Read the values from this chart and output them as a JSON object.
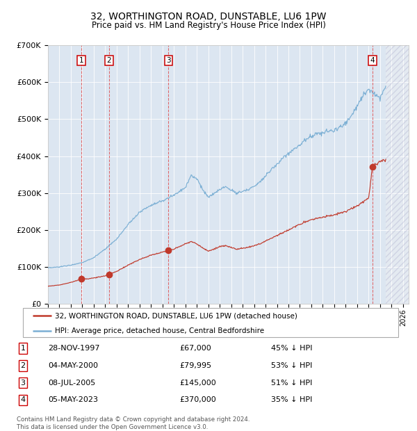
{
  "title1": "32, WORTHINGTON ROAD, DUNSTABLE, LU6 1PW",
  "title2": "Price paid vs. HM Land Registry's House Price Index (HPI)",
  "ylim": [
    0,
    700000
  ],
  "yticks": [
    0,
    100000,
    200000,
    300000,
    400000,
    500000,
    600000,
    700000
  ],
  "ytick_labels": [
    "£0",
    "£100K",
    "£200K",
    "£300K",
    "£400K",
    "£500K",
    "£600K",
    "£700K"
  ],
  "xlim_start": 1995.0,
  "xlim_end": 2026.5,
  "bg_color": "#dce6f1",
  "hpi_line_color": "#7bafd4",
  "price_line_color": "#c0392b",
  "marker_color": "#c0392b",
  "vline_color": "#e05050",
  "legend_label_red": "32, WORTHINGTON ROAD, DUNSTABLE, LU6 1PW (detached house)",
  "legend_label_blue": "HPI: Average price, detached house, Central Bedfordshire",
  "footer_text": "Contains HM Land Registry data © Crown copyright and database right 2024.\nThis data is licensed under the Open Government Licence v3.0.",
  "transactions": [
    {
      "num": 1,
      "date": "28-NOV-1997",
      "year": 1997.91,
      "price": 67000,
      "pct": "45% ↓ HPI"
    },
    {
      "num": 2,
      "date": "04-MAY-2000",
      "year": 2000.34,
      "price": 79995,
      "pct": "53% ↓ HPI"
    },
    {
      "num": 3,
      "date": "08-JUL-2005",
      "year": 2005.52,
      "price": 145000,
      "pct": "51% ↓ HPI"
    },
    {
      "num": 4,
      "date": "05-MAY-2023",
      "year": 2023.34,
      "price": 370000,
      "pct": "35% ↓ HPI"
    }
  ],
  "hatch_start": 2024.5,
  "hatch_end": 2026.5,
  "hpi_key_points": [
    [
      1995.0,
      97000
    ],
    [
      1996.0,
      100000
    ],
    [
      1997.0,
      105000
    ],
    [
      1998.0,
      112000
    ],
    [
      1999.0,
      125000
    ],
    [
      2000.0,
      148000
    ],
    [
      2001.0,
      175000
    ],
    [
      2002.0,
      215000
    ],
    [
      2003.0,
      248000
    ],
    [
      2004.0,
      268000
    ],
    [
      2005.0,
      278000
    ],
    [
      2006.0,
      295000
    ],
    [
      2007.0,
      315000
    ],
    [
      2007.5,
      348000
    ],
    [
      2008.0,
      340000
    ],
    [
      2008.5,
      310000
    ],
    [
      2009.0,
      288000
    ],
    [
      2009.5,
      298000
    ],
    [
      2010.0,
      310000
    ],
    [
      2010.5,
      318000
    ],
    [
      2011.0,
      308000
    ],
    [
      2011.5,
      300000
    ],
    [
      2012.0,
      305000
    ],
    [
      2012.5,
      310000
    ],
    [
      2013.0,
      318000
    ],
    [
      2013.5,
      330000
    ],
    [
      2014.0,
      348000
    ],
    [
      2015.0,
      378000
    ],
    [
      2016.0,
      408000
    ],
    [
      2017.0,
      430000
    ],
    [
      2017.5,
      445000
    ],
    [
      2018.0,
      455000
    ],
    [
      2018.5,
      460000
    ],
    [
      2019.0,
      462000
    ],
    [
      2019.5,
      468000
    ],
    [
      2020.0,
      470000
    ],
    [
      2020.5,
      478000
    ],
    [
      2021.0,
      490000
    ],
    [
      2021.5,
      510000
    ],
    [
      2022.0,
      535000
    ],
    [
      2022.5,
      565000
    ],
    [
      2023.0,
      580000
    ],
    [
      2023.5,
      570000
    ],
    [
      2024.0,
      558000
    ],
    [
      2024.5,
      590000
    ]
  ],
  "red_key_points": [
    [
      1995.0,
      48000
    ],
    [
      1996.0,
      51000
    ],
    [
      1997.0,
      58000
    ],
    [
      1997.91,
      67000
    ],
    [
      1998.5,
      68000
    ],
    [
      1999.0,
      70000
    ],
    [
      2000.0,
      76000
    ],
    [
      2000.34,
      79995
    ],
    [
      2001.0,
      88000
    ],
    [
      2002.0,
      105000
    ],
    [
      2003.0,
      120000
    ],
    [
      2004.0,
      132000
    ],
    [
      2005.0,
      140000
    ],
    [
      2005.52,
      145000
    ],
    [
      2006.0,
      148000
    ],
    [
      2007.0,
      162000
    ],
    [
      2007.5,
      170000
    ],
    [
      2008.0,
      162000
    ],
    [
      2008.5,
      152000
    ],
    [
      2009.0,
      143000
    ],
    [
      2009.5,
      148000
    ],
    [
      2010.0,
      155000
    ],
    [
      2010.5,
      158000
    ],
    [
      2011.0,
      152000
    ],
    [
      2011.5,
      148000
    ],
    [
      2012.0,
      150000
    ],
    [
      2012.5,
      153000
    ],
    [
      2013.0,
      157000
    ],
    [
      2013.5,
      162000
    ],
    [
      2014.0,
      170000
    ],
    [
      2015.0,
      185000
    ],
    [
      2016.0,
      200000
    ],
    [
      2017.0,
      215000
    ],
    [
      2017.5,
      222000
    ],
    [
      2018.0,
      228000
    ],
    [
      2018.5,
      232000
    ],
    [
      2019.0,
      235000
    ],
    [
      2019.5,
      238000
    ],
    [
      2020.0,
      240000
    ],
    [
      2020.5,
      245000
    ],
    [
      2021.0,
      250000
    ],
    [
      2021.5,
      258000
    ],
    [
      2022.0,
      265000
    ],
    [
      2022.5,
      275000
    ],
    [
      2023.0,
      285000
    ],
    [
      2023.34,
      370000
    ],
    [
      2023.5,
      375000
    ],
    [
      2024.0,
      385000
    ],
    [
      2024.5,
      390000
    ]
  ]
}
